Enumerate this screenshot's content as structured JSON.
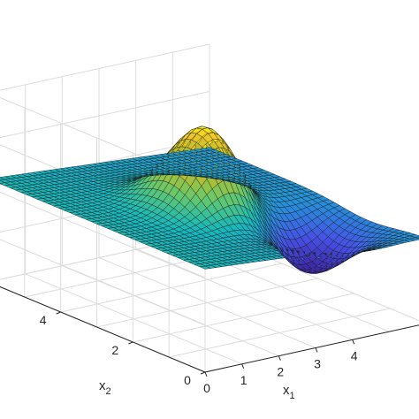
{
  "chart_data": {
    "type": "surface",
    "title": "",
    "xlabel": "x",
    "xlabel_sub": "1",
    "ylabel": "x",
    "ylabel_sub": "2",
    "zlabel": "",
    "xlim": [
      0,
      6
    ],
    "ylim": [
      0,
      6
    ],
    "zlim": [
      -1,
      1
    ],
    "x_ticks": [
      0,
      1,
      2,
      3,
      4
    ],
    "y_ticks": [
      0,
      2,
      4
    ],
    "grid": true,
    "colormap": "parula",
    "surface": {
      "grid_points": 41,
      "peak": {
        "x1": 3,
        "x2": 3,
        "value": 0.88
      },
      "trough": {
        "x1": 4.3,
        "x2": 1.6,
        "value": -0.55
      },
      "plane_slope": -0.03
    }
  },
  "colors": {
    "mesh_line": "#1a1a1a",
    "parula_low": "#3e26a8",
    "parula_mid": "#2bb3c3",
    "parula_high": "#f9fb15"
  }
}
